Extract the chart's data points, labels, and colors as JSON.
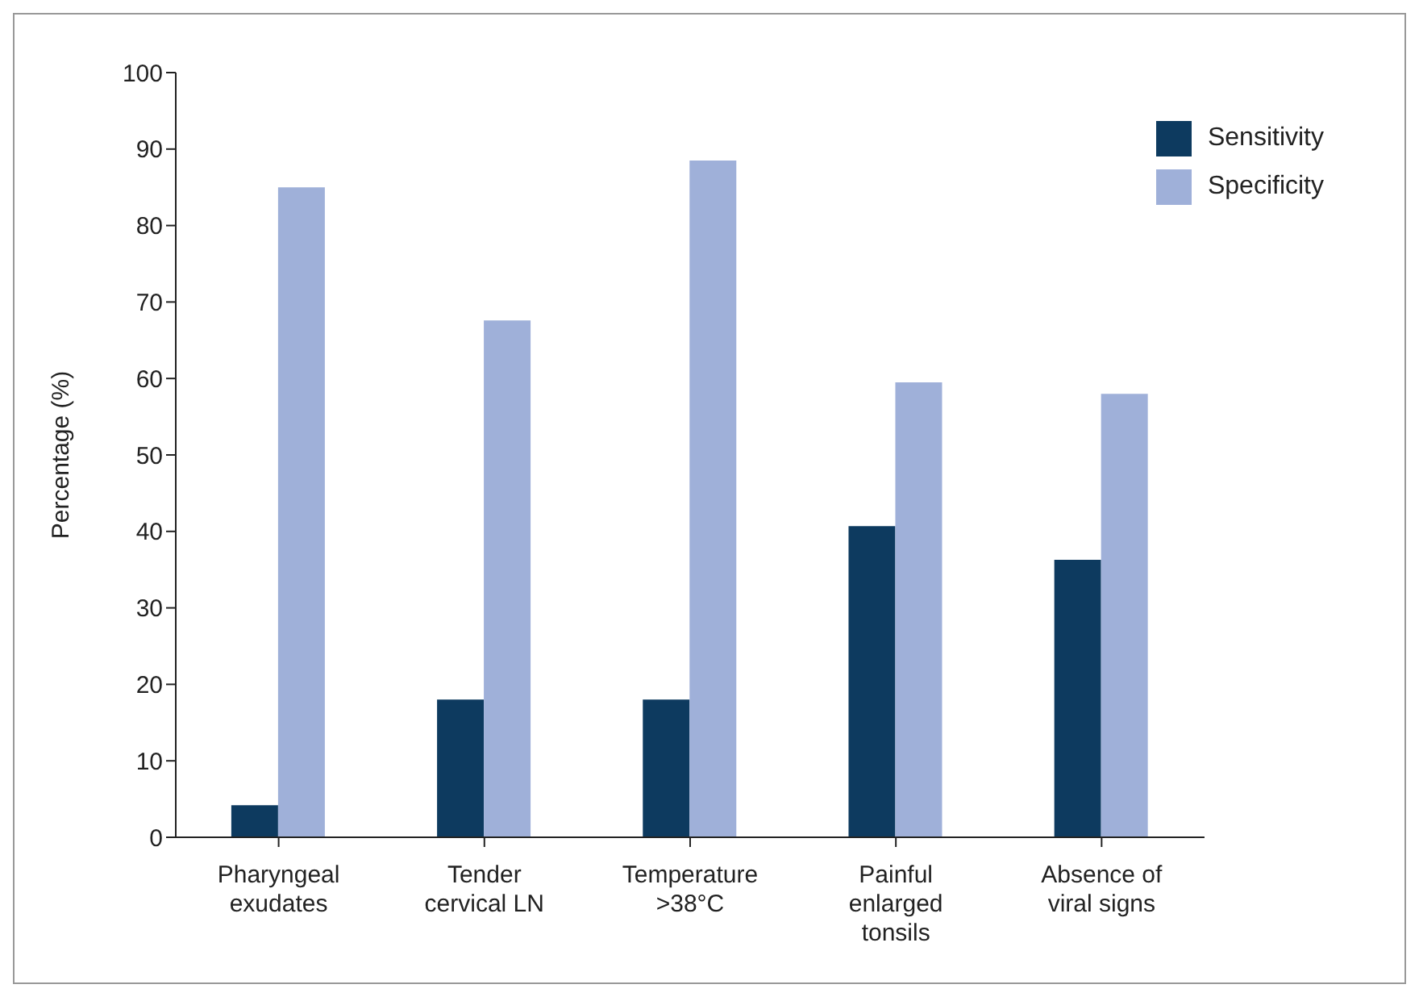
{
  "chart_data": {
    "type": "bar",
    "ylabel": "Percentage (%)",
    "categories": [
      "Pharyngeal exudates",
      "Tender cervical LN",
      "Temperature >38°C",
      "Painful enlarged tonsils",
      "Absence of viral signs"
    ],
    "series": [
      {
        "name": "Sensitivity",
        "color": "#0d3a5f",
        "values": [
          4.2,
          18,
          18,
          40.7,
          36.3
        ]
      },
      {
        "name": "Specificity",
        "color": "#9fb0d9",
        "values": [
          85,
          67.6,
          88.5,
          59.5,
          58
        ]
      }
    ],
    "ylim": [
      0,
      100
    ],
    "yticks": [
      0,
      10,
      20,
      30,
      40,
      50,
      60,
      70,
      80,
      90,
      100
    ],
    "grid": false,
    "legend": "top right"
  }
}
